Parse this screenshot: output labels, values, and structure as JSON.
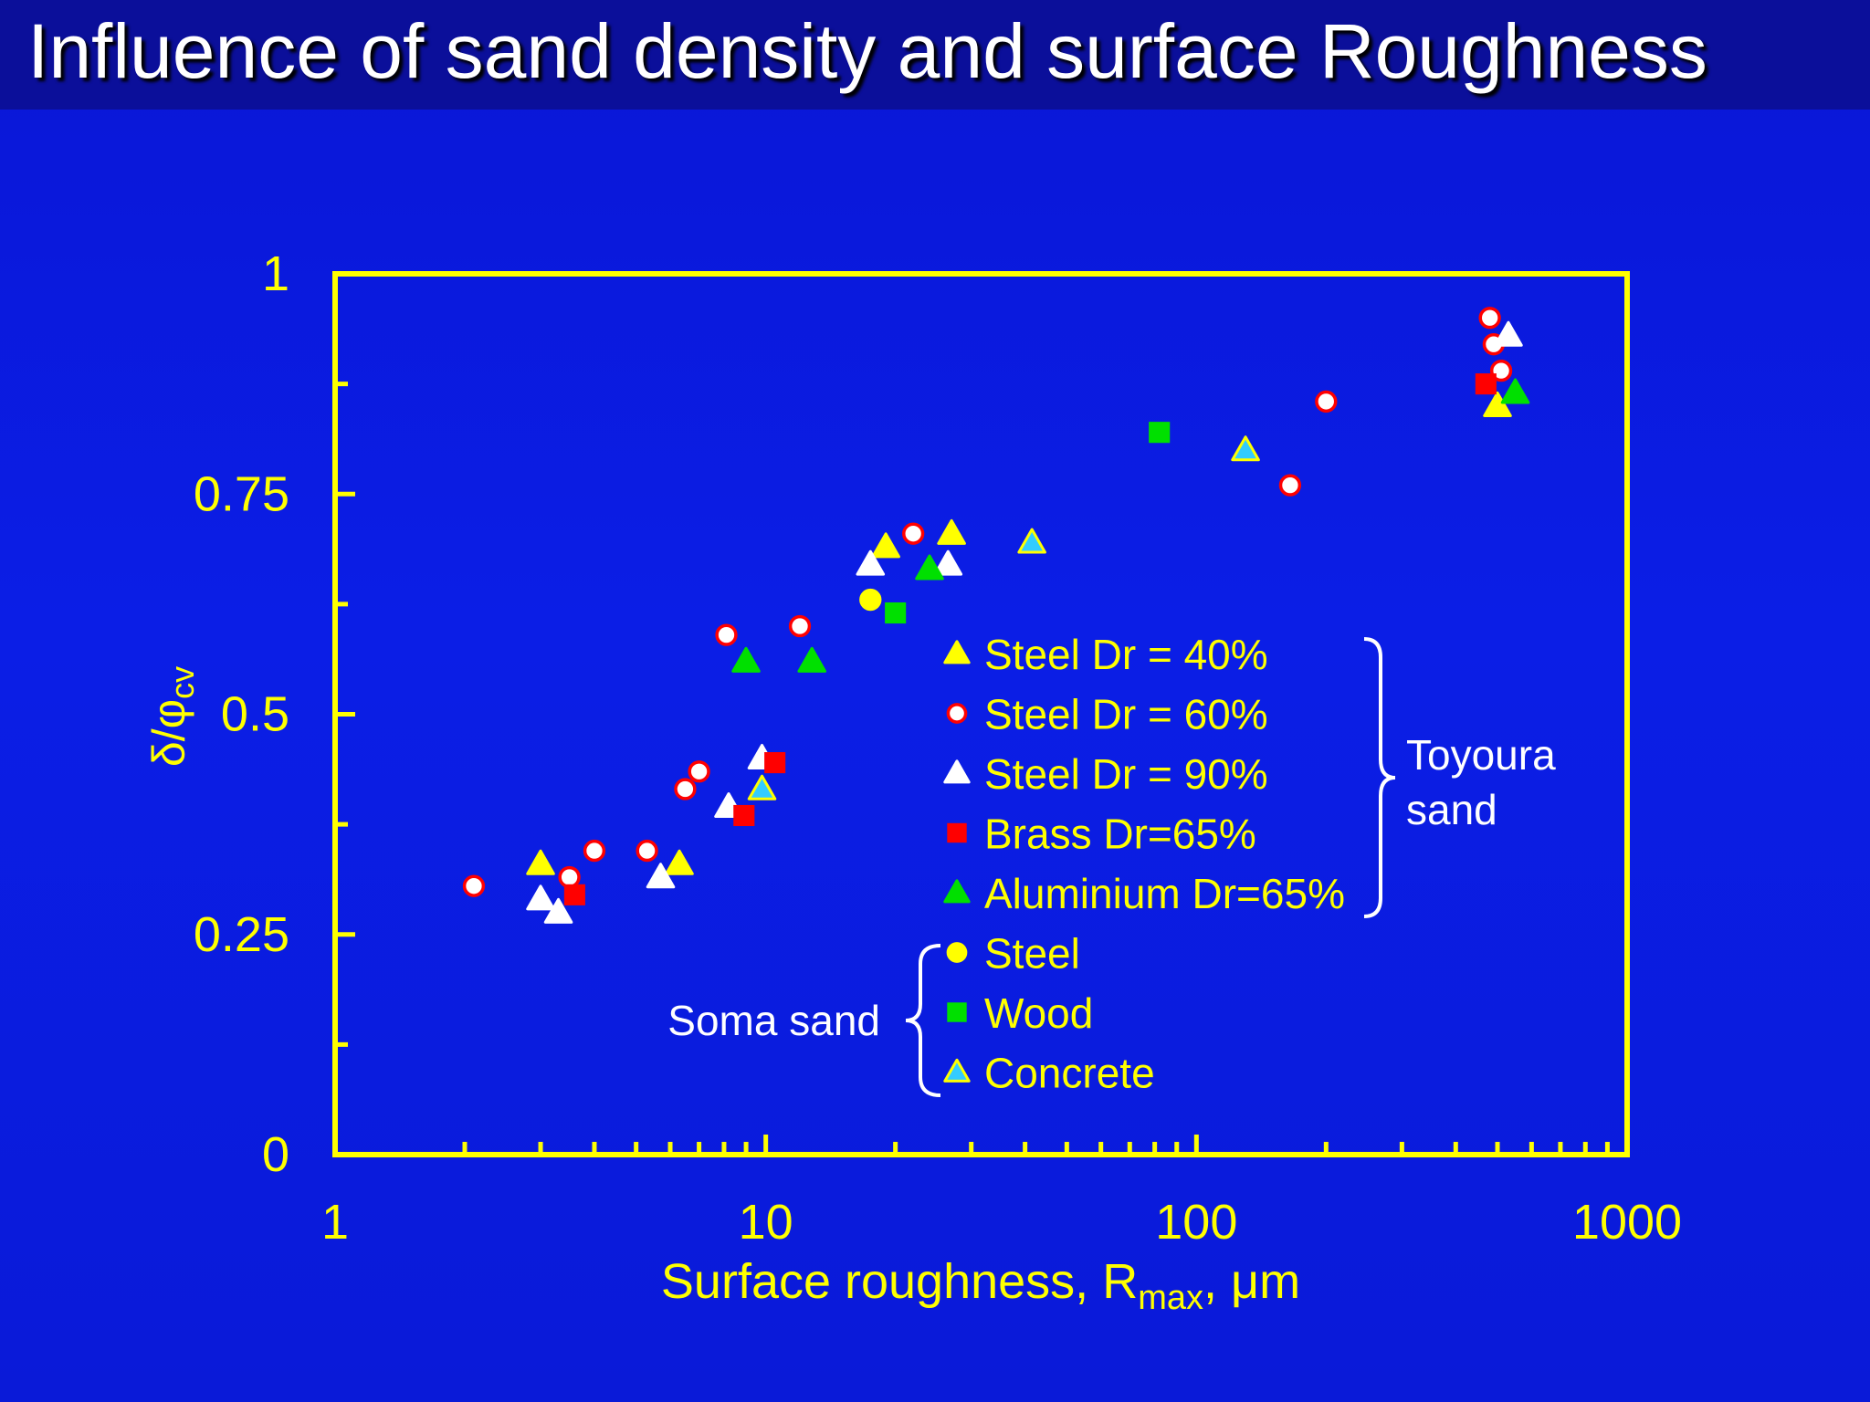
{
  "title": "Influence of sand density and surface Roughness",
  "colors": {
    "background": "#0b1ee6",
    "title_bar": "#0b0f9a",
    "axis": "#ffff00",
    "white": "#ffffff",
    "red": "#ff0000",
    "green": "#00e000",
    "cyan": "#33ccff"
  },
  "chart_data": {
    "type": "scatter",
    "xscale": "log",
    "xlim": [
      1,
      1000
    ],
    "ylim": [
      0,
      1
    ],
    "xlabel_main": "Surface roughness, R",
    "xlabel_sub": "max",
    "xlabel_tail": ", μm",
    "ylabel_main": "δ/φ",
    "ylabel_sub": "cv",
    "xticks": [
      {
        "value": 1,
        "label": "1"
      },
      {
        "value": 10,
        "label": "10"
      },
      {
        "value": 100,
        "label": "100"
      },
      {
        "value": 1000,
        "label": "1000"
      }
    ],
    "yticks": [
      {
        "value": 0,
        "label": "0"
      },
      {
        "value": 0.25,
        "label": "0.25"
      },
      {
        "value": 0.5,
        "label": "0.5"
      },
      {
        "value": 0.75,
        "label": "0.75"
      },
      {
        "value": 1,
        "label": "1"
      }
    ],
    "grid": false,
    "legend_position": "inside-bottom-center",
    "series": [
      {
        "name": "Steel Dr = 40%",
        "marker": "triangle",
        "fill": "#ffff00",
        "stroke": "#ffff00",
        "x": [
          3.0,
          6.3,
          19,
          27,
          500
        ],
        "y": [
          0.33,
          0.33,
          0.69,
          0.705,
          0.85
        ]
      },
      {
        "name": "Steel Dr = 60%",
        "marker": "circle",
        "fill": "#ffffff",
        "stroke": "#ff0000",
        "x": [
          2.1,
          3.5,
          4.0,
          5.3,
          6.5,
          7.0,
          8.1,
          12,
          22,
          165,
          200,
          480,
          490,
          510
        ],
        "y": [
          0.305,
          0.315,
          0.345,
          0.345,
          0.415,
          0.435,
          0.59,
          0.6,
          0.705,
          0.76,
          0.855,
          0.95,
          0.92,
          0.89
        ]
      },
      {
        "name": "Steel Dr = 90%",
        "marker": "triangle",
        "fill": "#ffffff",
        "stroke": "#ffffff",
        "x": [
          3.0,
          3.3,
          5.7,
          8.2,
          9.8,
          17.5,
          26.5,
          530
        ],
        "y": [
          0.29,
          0.275,
          0.315,
          0.395,
          0.45,
          0.67,
          0.67,
          0.93
        ]
      },
      {
        "name": "Brass Dr=65%",
        "marker": "square",
        "fill": "#ff0000",
        "stroke": "#ff0000",
        "x": [
          3.6,
          8.9,
          10.5,
          470
        ],
        "y": [
          0.295,
          0.385,
          0.445,
          0.875
        ]
      },
      {
        "name": "Aluminium Dr=65%",
        "marker": "triangle",
        "fill": "#00e000",
        "stroke": "#00e000",
        "x": [
          9.0,
          12.8,
          24,
          550
        ],
        "y": [
          0.56,
          0.56,
          0.665,
          0.865
        ]
      },
      {
        "name": "Steel",
        "marker": "circle",
        "fill": "#ffff00",
        "stroke": "#ffff00",
        "x": [
          17.5
        ],
        "y": [
          0.63
        ]
      },
      {
        "name": "Wood",
        "marker": "square",
        "fill": "#00e000",
        "stroke": "#00e000",
        "x": [
          20,
          82
        ],
        "y": [
          0.615,
          0.82
        ]
      },
      {
        "name": "Concrete",
        "marker": "triangle",
        "fill": "#33ccff",
        "stroke": "#ffff00",
        "x": [
          9.8,
          41.5,
          130
        ],
        "y": [
          0.415,
          0.695,
          0.8
        ]
      }
    ],
    "groups": [
      {
        "label_lines": [
          "Toyoura",
          "sand"
        ],
        "series": [
          "Steel Dr = 40%",
          "Steel Dr = 60%",
          "Steel Dr = 90%",
          "Brass Dr=65%",
          "Aluminium Dr=65%"
        ]
      },
      {
        "label_lines": [
          "Soma sand"
        ],
        "series": [
          "Steel",
          "Wood",
          "Concrete"
        ]
      }
    ]
  }
}
